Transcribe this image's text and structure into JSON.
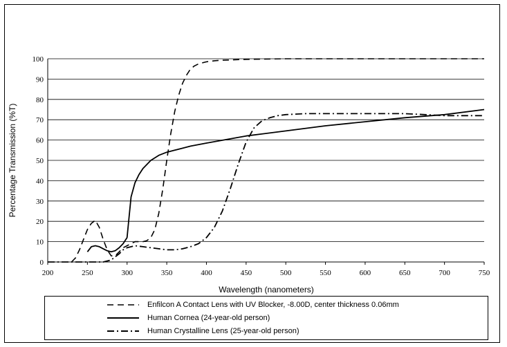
{
  "chart_data": {
    "type": "line",
    "title": "",
    "xlabel": "Wavelength (nanometers)",
    "ylabel": "Percentage Transmission (%T)",
    "xlim": [
      200,
      750
    ],
    "ylim": [
      0,
      100
    ],
    "x_ticks": [
      200,
      250,
      300,
      350,
      400,
      450,
      500,
      550,
      600,
      650,
      700,
      750
    ],
    "y_ticks": [
      0,
      10,
      20,
      30,
      40,
      50,
      60,
      70,
      80,
      90,
      100
    ],
    "grid": "horizontal",
    "legend_position": "bottom",
    "series": [
      {
        "name": "Enfilcon A Contact Lens with UV Blocker, -8.00D, center thickness 0.06mm",
        "style": "dashed",
        "color": "#000000",
        "x": [
          230,
          235,
          240,
          245,
          250,
          255,
          260,
          265,
          270,
          275,
          280,
          285,
          290,
          295,
          300,
          305,
          310,
          315,
          320,
          325,
          330,
          335,
          340,
          345,
          350,
          355,
          360,
          365,
          370,
          375,
          380,
          385,
          390,
          395,
          400,
          410,
          420,
          450,
          500,
          550,
          600,
          650,
          700,
          750
        ],
        "y": [
          0,
          2,
          6,
          11,
          16,
          19,
          20.5,
          17,
          11,
          6,
          3,
          3,
          5,
          7,
          8,
          9,
          10,
          10,
          10,
          10.5,
          12,
          16,
          24,
          36,
          50,
          63,
          74,
          82,
          88,
          92,
          95,
          96.5,
          97.5,
          98,
          98.5,
          99,
          99.3,
          99.7,
          100,
          100,
          100,
          100,
          100,
          100
        ]
      },
      {
        "name": "Human Cornea (24-year-old person)",
        "style": "solid",
        "color": "#000000",
        "x": [
          250,
          255,
          260,
          265,
          270,
          275,
          280,
          285,
          290,
          295,
          300,
          302,
          305,
          310,
          315,
          320,
          325,
          330,
          340,
          350,
          360,
          370,
          380,
          400,
          450,
          500,
          550,
          600,
          650,
          700,
          750
        ],
        "y": [
          5,
          7.5,
          8,
          7.5,
          6.5,
          5.5,
          5,
          5.5,
          7,
          9,
          12,
          20,
          32,
          39,
          43,
          46,
          48,
          50,
          52.5,
          54,
          55,
          56,
          57,
          58.5,
          62,
          64.5,
          67,
          69,
          71,
          72.5,
          75
        ]
      },
      {
        "name": "Human Crystalline Lens (25-year-old person)",
        "style": "dash-dot",
        "color": "#000000",
        "x": [
          200,
          210,
          220,
          230,
          240,
          250,
          260,
          270,
          280,
          285,
          290,
          295,
          300,
          310,
          320,
          330,
          340,
          350,
          360,
          370,
          380,
          390,
          400,
          410,
          420,
          430,
          440,
          450,
          460,
          470,
          480,
          490,
          500,
          525,
          550,
          575,
          600,
          625,
          650,
          675,
          700,
          725,
          750
        ],
        "y": [
          0,
          0,
          0,
          0,
          0,
          0,
          0,
          0,
          1,
          2.5,
          4,
          6,
          7,
          8,
          7.5,
          7,
          6.5,
          6,
          6,
          6.5,
          7.5,
          9,
          12,
          17,
          25,
          36,
          48,
          59,
          66,
          69.5,
          71,
          72,
          72.5,
          73,
          73,
          73,
          73,
          73,
          73,
          72.5,
          72,
          72,
          72
        ]
      }
    ]
  }
}
